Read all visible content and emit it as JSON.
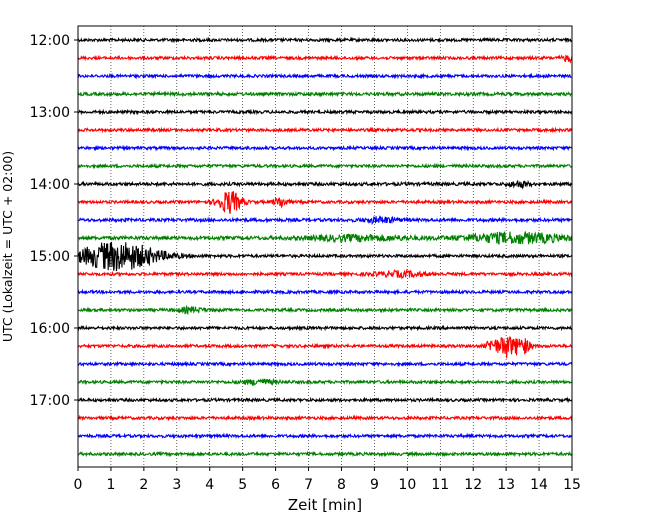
{
  "chart_data": {
    "type": "line",
    "title": "",
    "xlabel": "Zeit  [min]",
    "ylabel": "UTC (Lokalzeit = UTC + 02:00)",
    "xlim": [
      0,
      15
    ],
    "x_ticks": [
      "0",
      "1",
      "2",
      "3",
      "4",
      "5",
      "6",
      "7",
      "8",
      "9",
      "10",
      "11",
      "12",
      "13",
      "14",
      "15"
    ],
    "y_ticks": [
      "12:00",
      "13:00",
      "14:00",
      "15:00",
      "16:00",
      "17:00"
    ],
    "grid": "vertical dotted",
    "trace_interval_min": 15,
    "trace_colors": [
      "#000000",
      "#ff0000",
      "#0000ff",
      "#008000"
    ],
    "traces": [
      {
        "start": "12:00",
        "amplitude": 1.0,
        "events": []
      },
      {
        "start": "12:15",
        "amplitude": 1.0,
        "events": [
          {
            "t": 14.9,
            "a": 1.8,
            "w": 0.2
          }
        ]
      },
      {
        "start": "12:30",
        "amplitude": 1.0,
        "events": []
      },
      {
        "start": "12:45",
        "amplitude": 1.1,
        "events": []
      },
      {
        "start": "13:00",
        "amplitude": 1.0,
        "events": []
      },
      {
        "start": "13:15",
        "amplitude": 1.0,
        "events": []
      },
      {
        "start": "13:30",
        "amplitude": 1.0,
        "events": []
      },
      {
        "start": "13:45",
        "amplitude": 1.0,
        "events": []
      },
      {
        "start": "14:00",
        "amplitude": 1.1,
        "events": [
          {
            "t": 13.4,
            "a": 1.8,
            "w": 0.3
          }
        ]
      },
      {
        "start": "14:15",
        "amplitude": 1.0,
        "events": [
          {
            "t": 4.6,
            "a": 7.0,
            "w": 0.35
          },
          {
            "t": 6.15,
            "a": 3.0,
            "w": 0.2
          }
        ]
      },
      {
        "start": "14:30",
        "amplitude": 1.1,
        "events": [
          {
            "t": 9.2,
            "a": 1.6,
            "w": 0.5
          }
        ]
      },
      {
        "start": "14:45",
        "amplitude": 1.2,
        "events": [
          {
            "t": 8.5,
            "a": 1.6,
            "w": 1.5
          },
          {
            "t": 13.3,
            "a": 3.2,
            "w": 1.5
          }
        ]
      },
      {
        "start": "15:00",
        "amplitude": 1.0,
        "events": [
          {
            "t": 1.2,
            "a": 9.0,
            "w": 1.2
          }
        ]
      },
      {
        "start": "15:15",
        "amplitude": 1.0,
        "events": [
          {
            "t": 9.8,
            "a": 1.6,
            "w": 0.8
          }
        ]
      },
      {
        "start": "15:30",
        "amplitude": 1.0,
        "events": []
      },
      {
        "start": "15:45",
        "amplitude": 1.0,
        "events": [
          {
            "t": 3.4,
            "a": 1.5,
            "w": 0.4
          }
        ]
      },
      {
        "start": "16:00",
        "amplitude": 1.0,
        "events": []
      },
      {
        "start": "16:15",
        "amplitude": 1.0,
        "events": [
          {
            "t": 12.6,
            "a": 4.0,
            "w": 0.2
          },
          {
            "t": 13.0,
            "a": 7.0,
            "w": 0.2
          },
          {
            "t": 13.45,
            "a": 6.0,
            "w": 0.25
          }
        ]
      },
      {
        "start": "16:30",
        "amplitude": 1.0,
        "events": []
      },
      {
        "start": "16:45",
        "amplitude": 1.0,
        "events": [
          {
            "t": 5.5,
            "a": 1.5,
            "w": 0.5
          }
        ]
      },
      {
        "start": "17:00",
        "amplitude": 1.0,
        "events": []
      },
      {
        "start": "17:15",
        "amplitude": 1.0,
        "events": []
      },
      {
        "start": "17:30",
        "amplitude": 1.0,
        "events": []
      },
      {
        "start": "17:45",
        "amplitude": 1.0,
        "events": []
      }
    ]
  }
}
